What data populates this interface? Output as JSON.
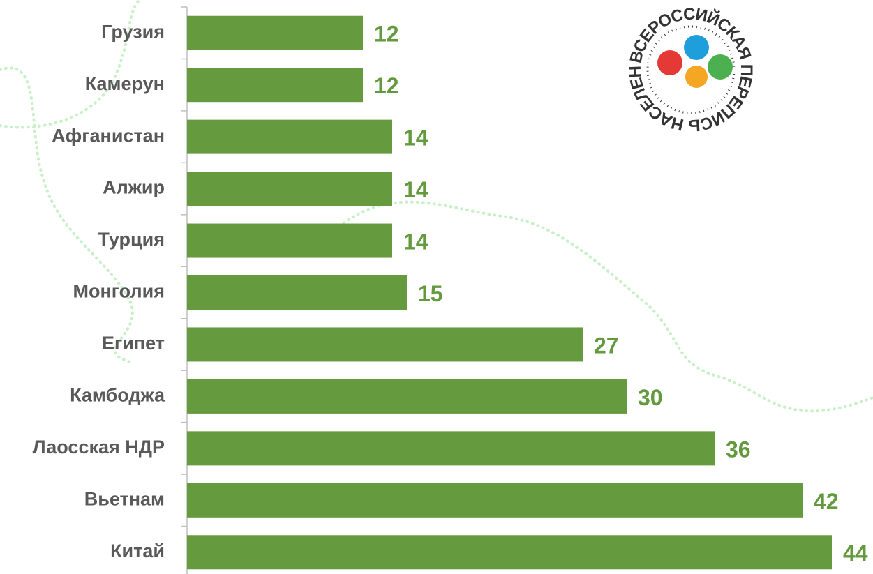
{
  "chart_data": {
    "type": "bar",
    "orientation": "horizontal",
    "categories": [
      "Грузия",
      "Камерун",
      "Афганистан",
      "Алжир",
      "Турция",
      "Монголия",
      "Египет",
      "Камбоджа",
      "Лаосская НДР",
      "Вьетнам",
      "Китай"
    ],
    "values": [
      12,
      12,
      14,
      14,
      14,
      15,
      27,
      30,
      36,
      42,
      44
    ],
    "color": "#659b3e",
    "xlim": [
      0,
      45
    ]
  },
  "logo": {
    "text": "ВСЕРОССИЙСКАЯ ПЕРЕПИСЬ НАСЕЛЕНИЯ"
  }
}
